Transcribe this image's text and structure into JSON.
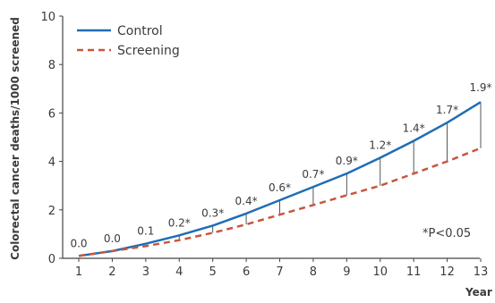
{
  "chart_data": {
    "type": "line",
    "title": "",
    "xlabel": "Year",
    "ylabel": "Colorectal cancer deaths/1000 screened",
    "x": [
      1,
      2,
      3,
      4,
      5,
      6,
      7,
      8,
      9,
      10,
      11,
      12,
      13
    ],
    "xlim": [
      1,
      13
    ],
    "ylim": [
      0,
      10
    ],
    "yticks": [
      0,
      2,
      4,
      6,
      8,
      10
    ],
    "grid": false,
    "legend_position": "top-left",
    "series": [
      {
        "name": "Control",
        "color": "#1f6db5",
        "line_style": "solid",
        "values": [
          0.1,
          0.3,
          0.6,
          0.95,
          1.35,
          1.85,
          2.4,
          2.95,
          3.5,
          4.15,
          4.85,
          5.6,
          6.45
        ]
      },
      {
        "name": "Screening",
        "color": "#c8553d",
        "line_style": "dashed",
        "values": [
          0.1,
          0.3,
          0.5,
          0.75,
          1.05,
          1.4,
          1.8,
          2.2,
          2.6,
          3.0,
          3.5,
          4.0,
          4.55
        ]
      }
    ],
    "difference_labels": [
      "0.0",
      "0.0",
      "0.1",
      "0.2*",
      "0.3*",
      "0.4*",
      "0.6*",
      "0.7*",
      "0.9*",
      "1.2*",
      "1.4*",
      "1.7*",
      "1.9*"
    ],
    "annotations": [
      "*P<0.05"
    ]
  }
}
